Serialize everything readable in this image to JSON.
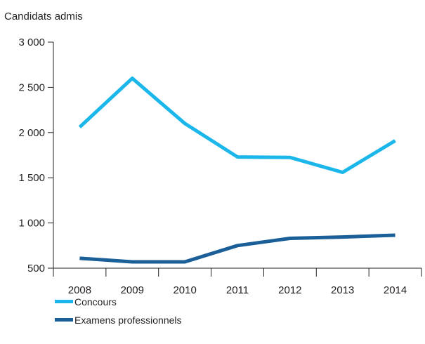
{
  "chart_data": {
    "type": "line",
    "title": "",
    "xlabel": "",
    "ylabel": "Candidats admis",
    "categories": [
      "2008",
      "2009",
      "2010",
      "2011",
      "2012",
      "2013",
      "2014"
    ],
    "ylim": [
      500,
      3000
    ],
    "yticks": [
      500,
      1000,
      1500,
      2000,
      2500,
      3000
    ],
    "ytick_labels": [
      "500",
      "1 000",
      "1 500",
      "2 000",
      "2 500",
      "3 000"
    ],
    "grid": false,
    "legend_position": "bottom-left",
    "series": [
      {
        "name": "Concours",
        "color": "#1bb7ea",
        "values": [
          2060,
          2600,
          2100,
          1730,
          1725,
          1560,
          1910
        ]
      },
      {
        "name": "Examens professionnels",
        "color": "#1b5f99",
        "values": [
          610,
          570,
          570,
          750,
          830,
          845,
          865
        ]
      }
    ]
  }
}
